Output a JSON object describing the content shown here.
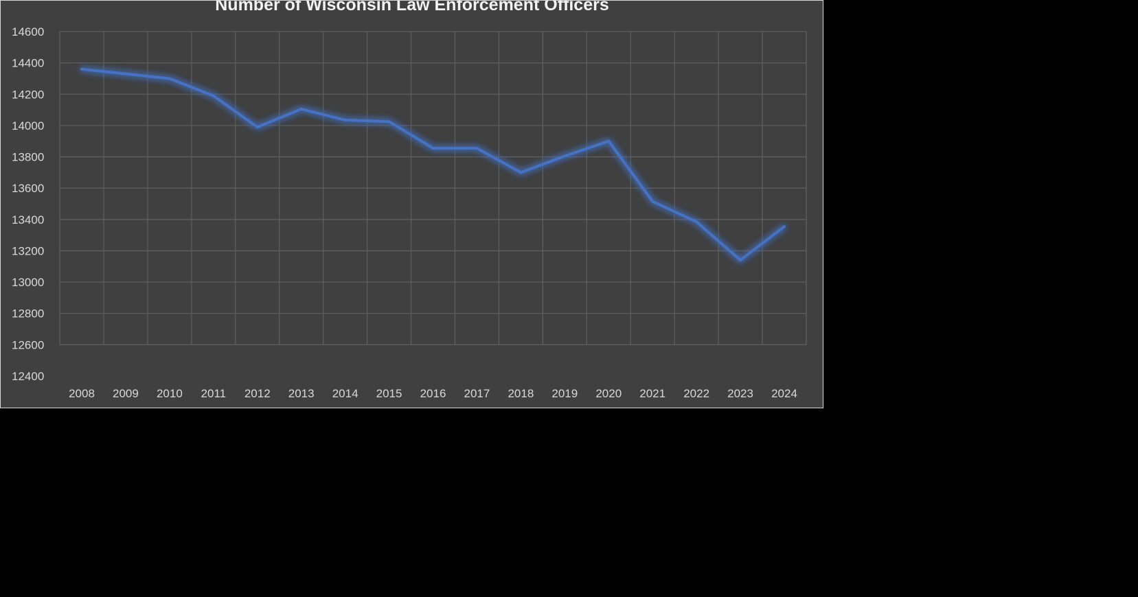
{
  "chart_data": {
    "type": "line",
    "title": "Number of Wisconsin Law Enforcement Officers",
    "xlabel": "",
    "ylabel": "",
    "categories": [
      "2008",
      "2009",
      "2010",
      "2011",
      "2012",
      "2013",
      "2014",
      "2015",
      "2016",
      "2017",
      "2018",
      "2019",
      "2020",
      "2021",
      "2022",
      "2023",
      "2024"
    ],
    "series": [
      {
        "values": [
          14360,
          14330,
          14300,
          14190,
          13990,
          14105,
          14035,
          14025,
          13855,
          13855,
          13700,
          13805,
          13900,
          13515,
          13385,
          13140,
          13355
        ]
      }
    ],
    "ylim": [
      12400,
      14600
    ],
    "yticks": [
      "14600",
      "14400",
      "14200",
      "14000",
      "13800",
      "13600",
      "13400",
      "13200",
      "13000",
      "12800",
      "12600",
      "12400"
    ],
    "grid": true,
    "legend": "none",
    "colors": {
      "background": "#404040",
      "page": "#000000",
      "line": "#4472c4",
      "grid": "#5e5e5e",
      "text": "#d9d9d9",
      "title": "#f2f2f2"
    }
  }
}
